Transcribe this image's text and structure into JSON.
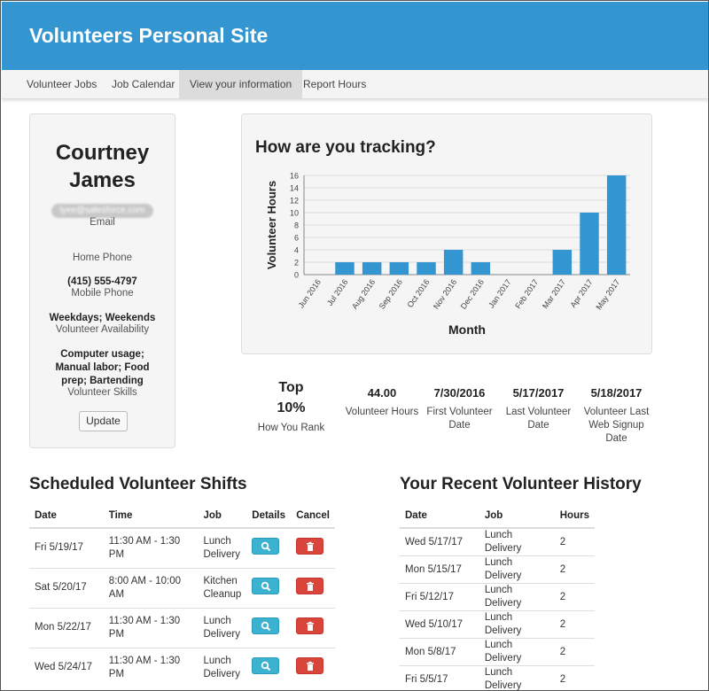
{
  "site": {
    "title": "Volunteers Personal Site"
  },
  "nav": {
    "tabs": [
      {
        "label": "Volunteer Jobs"
      },
      {
        "label": "Job Calendar"
      },
      {
        "label": "View your information"
      },
      {
        "label": "Report Hours"
      }
    ],
    "active_index": 2
  },
  "profile": {
    "first_name": "Courtney",
    "last_name": "James",
    "email": "lyee@salesforce.com",
    "email_label": "Email",
    "home_phone_label": "Home Phone",
    "mobile_phone": "(415) 555-4797",
    "mobile_phone_label": "Mobile Phone",
    "availability": "Weekdays; Weekends",
    "availability_label": "Volunteer Availability",
    "skills_line1": "Computer usage;",
    "skills_line2": "Manual labor; Food",
    "skills_line3": "prep; Bartending",
    "skills_label": "Volunteer Skills",
    "update_label": "Update"
  },
  "tracking": {
    "title": "How are you tracking?"
  },
  "chart_data": {
    "type": "bar",
    "xlabel": "Month",
    "ylabel": "Volunteer Hours",
    "ylim": [
      0,
      16
    ],
    "yticks": [
      0,
      2,
      4,
      6,
      8,
      10,
      12,
      14,
      16
    ],
    "categories": [
      "Jun 2016",
      "Jul 2016",
      "Aug 2016",
      "Sep 2016",
      "Oct 2016",
      "Nov 2016",
      "Dec 2016",
      "Jan 2017",
      "Feb 2017",
      "Mar 2017",
      "Apr 2017",
      "May 2017"
    ],
    "values": [
      0,
      2,
      2,
      2,
      2,
      4,
      2,
      0,
      0,
      4,
      10,
      16
    ],
    "bar_color": "#3396d1",
    "grid": true
  },
  "stats": {
    "rank_line1": "Top",
    "rank_line2": "10%",
    "rank_label": "How You Rank",
    "hours": "44.00",
    "hours_label": "Volunteer Hours",
    "first_date": "7/30/2016",
    "first_label_1": "First Volunteer",
    "first_label_2": "Date",
    "last_date": "5/17/2017",
    "last_label_1": "Last Volunteer",
    "last_label_2": "Date",
    "signup_date": "5/18/2017",
    "signup_label_1": "Volunteer Last",
    "signup_label_2": "Web Signup",
    "signup_label_3": "Date"
  },
  "shifts": {
    "title": "Scheduled Volunteer Shifts",
    "headers": {
      "date": "Date",
      "time": "Time",
      "job": "Job",
      "details": "Details",
      "cancel": "Cancel"
    },
    "rows": [
      {
        "date": "Fri 5/19/17",
        "time": "11:30 AM - 1:30 PM",
        "job1": "Lunch",
        "job2": "Delivery"
      },
      {
        "date": "Sat 5/20/17",
        "time": "8:00 AM - 10:00 AM",
        "job1": "Kitchen",
        "job2": "Cleanup"
      },
      {
        "date": "Mon 5/22/17",
        "time": "11:30 AM - 1:30 PM",
        "job1": "Lunch",
        "job2": "Delivery"
      },
      {
        "date": "Wed 5/24/17",
        "time": "11:30 AM - 1:30 PM",
        "job1": "Lunch",
        "job2": "Delivery"
      }
    ],
    "details_icon": "search-icon",
    "cancel_icon": "trash-icon",
    "details_color": "#3bb2d0",
    "cancel_color": "#d9443b"
  },
  "history": {
    "title": "Your Recent Volunteer History",
    "headers": {
      "date": "Date",
      "job": "Job",
      "hours": "Hours"
    },
    "rows": [
      {
        "date": "Wed 5/17/17",
        "job": "Lunch Delivery",
        "hours": "2"
      },
      {
        "date": "Mon 5/15/17",
        "job": "Lunch Delivery",
        "hours": "2"
      },
      {
        "date": "Fri 5/12/17",
        "job": "Lunch Delivery",
        "hours": "2"
      },
      {
        "date": "Wed 5/10/17",
        "job": "Lunch Delivery",
        "hours": "2"
      },
      {
        "date": "Mon 5/8/17",
        "job": "Lunch Delivery",
        "hours": "2"
      },
      {
        "date": "Fri 5/5/17",
        "job": "Lunch Delivery",
        "hours": "2"
      }
    ]
  }
}
